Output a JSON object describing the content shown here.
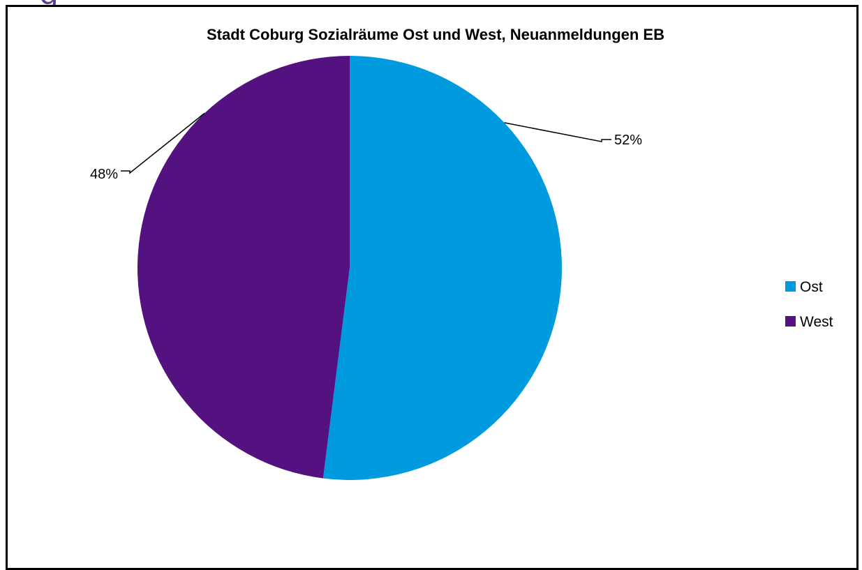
{
  "fragment_text": "g",
  "chart_data": {
    "type": "pie",
    "title": "Stadt Coburg Sozialräume Ost und West, Neuanmeldungen  EB",
    "categories": [
      "Ost",
      "West"
    ],
    "values": [
      52,
      48
    ],
    "data_labels": [
      "52%",
      "48%"
    ],
    "colors": [
      "#009bde",
      "#541180"
    ],
    "legend": {
      "placement": "right",
      "entries": [
        "Ost",
        "West"
      ]
    }
  }
}
